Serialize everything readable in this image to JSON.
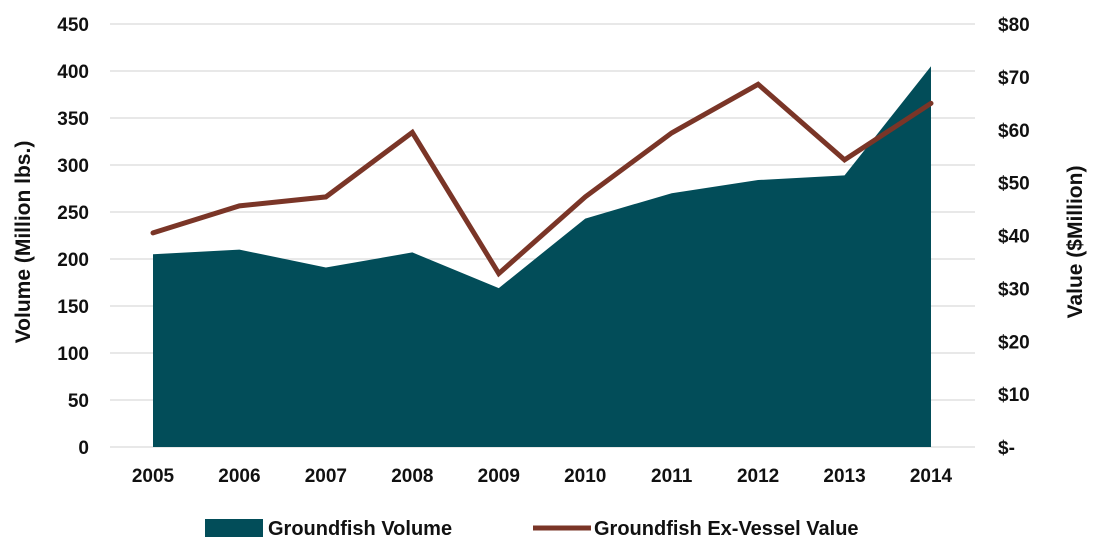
{
  "chart_data": {
    "type": "area",
    "categories": [
      "2005",
      "2006",
      "2007",
      "2008",
      "2009",
      "2010",
      "2011",
      "2012",
      "2013",
      "2014"
    ],
    "series": [
      {
        "name": "Groundfish Volume",
        "type": "area",
        "axis": "left",
        "color": "#024d59",
        "values": [
          205,
          210,
          191,
          207,
          169,
          243,
          270,
          284,
          289,
          405
        ]
      },
      {
        "name": "Groundfish Ex-Vessel Value",
        "type": "line",
        "axis": "right",
        "color": "#7a3527",
        "values": [
          40.5,
          45.6,
          47.3,
          59.5,
          32.8,
          47.3,
          59.4,
          68.6,
          54.3,
          65.0
        ]
      }
    ],
    "ylabel_left": "Volume (Million lbs.)",
    "ylabel_right": "Value ($Million)",
    "ylim_left": [
      0,
      450
    ],
    "ylim_right": [
      0,
      80
    ],
    "yticks_left": [
      "0",
      "50",
      "100",
      "150",
      "200",
      "250",
      "300",
      "350",
      "400",
      "450"
    ],
    "yticks_right": [
      "$-",
      "$10",
      "$20",
      "$30",
      "$40",
      "$50",
      "$60",
      "$70",
      "$80"
    ],
    "grid": true,
    "legend_position": "bottom"
  }
}
